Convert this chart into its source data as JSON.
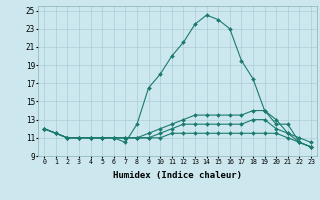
{
  "xlabel": "Humidex (Indice chaleur)",
  "ylabel": "",
  "xlim": [
    -0.5,
    23.5
  ],
  "ylim": [
    9,
    25.5
  ],
  "yticks": [
    9,
    11,
    13,
    15,
    17,
    19,
    21,
    23,
    25
  ],
  "xticks": [
    0,
    1,
    2,
    3,
    4,
    5,
    6,
    7,
    8,
    9,
    10,
    11,
    12,
    13,
    14,
    15,
    16,
    17,
    18,
    19,
    20,
    21,
    22,
    23
  ],
  "background_color": "#cce8ee",
  "grid_color": "#aacdd6",
  "line_color": "#1a7a6e",
  "lines": [
    {
      "x": [
        0,
        1,
        2,
        3,
        4,
        5,
        6,
        7,
        8,
        9,
        10,
        11,
        12,
        13,
        14,
        15,
        16,
        17,
        18,
        19,
        20,
        21,
        22,
        23
      ],
      "y": [
        12,
        11.5,
        11,
        11,
        11,
        11,
        11,
        10.5,
        12.5,
        16.5,
        18,
        20,
        21.5,
        23.5,
        24.5,
        24,
        23,
        19.5,
        17.5,
        14,
        13,
        11.5,
        11,
        10.5
      ],
      "marker": "D",
      "markersize": 2.0
    },
    {
      "x": [
        0,
        1,
        2,
        3,
        4,
        5,
        6,
        7,
        8,
        9,
        10,
        11,
        12,
        13,
        14,
        15,
        16,
        17,
        18,
        19,
        20,
        21,
        22,
        23
      ],
      "y": [
        12,
        11.5,
        11,
        11,
        11,
        11,
        11,
        11,
        11,
        11.5,
        12,
        12.5,
        13,
        13.5,
        13.5,
        13.5,
        13.5,
        13.5,
        14,
        14,
        12.5,
        12.5,
        10.5,
        10
      ],
      "marker": "D",
      "markersize": 2.0
    },
    {
      "x": [
        0,
        1,
        2,
        3,
        4,
        5,
        6,
        7,
        8,
        9,
        10,
        11,
        12,
        13,
        14,
        15,
        16,
        17,
        18,
        19,
        20,
        21,
        22,
        23
      ],
      "y": [
        12,
        11.5,
        11,
        11,
        11,
        11,
        11,
        11,
        11,
        11,
        11.5,
        12,
        12.5,
        12.5,
        12.5,
        12.5,
        12.5,
        12.5,
        13,
        13,
        12,
        11.5,
        10.5,
        10
      ],
      "marker": "D",
      "markersize": 2.0
    },
    {
      "x": [
        0,
        1,
        2,
        3,
        4,
        5,
        6,
        7,
        8,
        9,
        10,
        11,
        12,
        13,
        14,
        15,
        16,
        17,
        18,
        19,
        20,
        21,
        22,
        23
      ],
      "y": [
        12,
        11.5,
        11,
        11,
        11,
        11,
        11,
        11,
        11,
        11,
        11,
        11.5,
        11.5,
        11.5,
        11.5,
        11.5,
        11.5,
        11.5,
        11.5,
        11.5,
        11.5,
        11,
        10.5,
        10
      ],
      "marker": "D",
      "markersize": 2.0
    }
  ]
}
